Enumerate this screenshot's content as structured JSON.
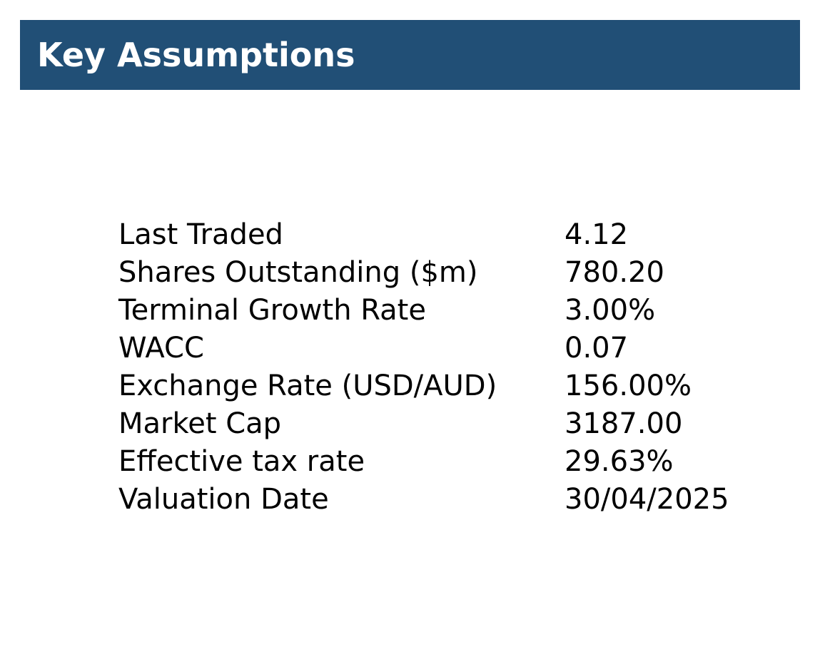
{
  "header": {
    "title": "Key Assumptions",
    "background_color": "#214f76",
    "text_color": "#ffffff"
  },
  "assumptions": [
    {
      "label": "Last Traded",
      "value": "4.12"
    },
    {
      "label": "Shares Outstanding ($m)",
      "value": "780.20"
    },
    {
      "label": "Terminal Growth Rate",
      "value": "3.00%"
    },
    {
      "label": "WACC",
      "value": "0.07"
    },
    {
      "label": "Exchange Rate (USD/AUD)",
      "value": "156.00%"
    },
    {
      "label": "Market Cap",
      "value": "3187.00"
    },
    {
      "label": "Effective tax rate",
      "value": "29.63%"
    },
    {
      "label": "Valuation Date",
      "value": "30/04/2025"
    }
  ]
}
